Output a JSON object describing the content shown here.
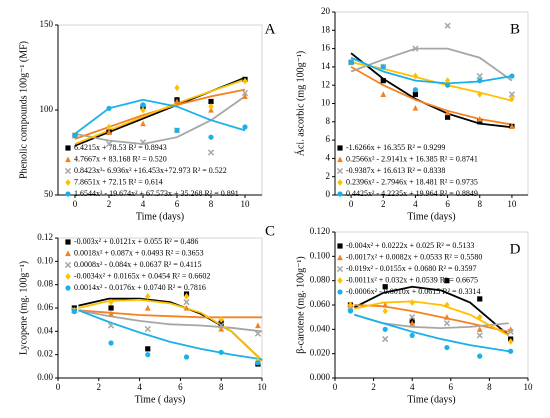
{
  "chart_data": [
    {
      "type": "scatter",
      "label": "A",
      "xlabel": "Time (days)",
      "ylabel": "Phenolic compounds 100g⁻¹ (MF)",
      "xlim": [
        -1,
        11
      ],
      "xticks": [
        0,
        2,
        4,
        6,
        8,
        10
      ],
      "ylim": [
        50,
        150
      ],
      "yticks": [
        50,
        100,
        150
      ],
      "x": [
        0,
        2,
        4,
        6,
        8,
        10
      ],
      "fit_x": [
        0,
        2,
        4,
        6,
        8,
        10
      ],
      "series": [
        {
          "name": "6.4215x + 78.53 R² = 0.8943",
          "color": "#000000",
          "marker": "square",
          "values": [
            85,
            87,
            102,
            106,
            105,
            118
          ],
          "fit": [
            79,
            87,
            95,
            103,
            111,
            119
          ]
        },
        {
          "name": "4.7667x + 83.168 R² = 0.520",
          "color": "#f58220",
          "marker": "triangle",
          "values": [
            85,
            87,
            92,
            105,
            100,
            108
          ],
          "fit": [
            83,
            90,
            97,
            103,
            108,
            112
          ]
        },
        {
          "name": "0.8423x³- 6.936x² +16.453x+72.973 R² = 0.522",
          "color": "#a6a6a6",
          "marker": "x",
          "values": [
            85,
            80,
            81,
            88,
            75,
            110
          ],
          "fit": [
            86,
            82,
            80,
            84,
            94,
            108
          ]
        },
        {
          "name": "7.8651x + 72.15 R² = 0.614",
          "color": "#ffc000",
          "marker": "diamond",
          "values": [
            85,
            90,
            100,
            113,
            102,
            117
          ],
          "fit": [
            80,
            88,
            96,
            104,
            111,
            118
          ]
        },
        {
          "name": "1.6544x³ - 19.674x² + 67.573x + 35.268 R² = 0.891",
          "color": "#1ab0e8",
          "marker": "circle",
          "values": [
            85,
            101,
            103,
            88,
            84,
            90
          ],
          "fit": [
            86,
            101,
            106,
            102,
            94,
            88
          ]
        }
      ]
    },
    {
      "type": "scatter",
      "label": "B",
      "xlabel": "Time (days)",
      "ylabel": "Áci. ascorbic (mg 100g⁻¹)",
      "xlim": [
        -1,
        11
      ],
      "xticks": [
        0,
        2,
        4,
        6,
        8,
        10
      ],
      "ylim": [
        0,
        20
      ],
      "yticks": [
        0,
        2,
        4,
        6,
        8,
        10,
        12,
        14,
        16,
        18,
        20
      ],
      "x": [
        0,
        2,
        4,
        6,
        8,
        10
      ],
      "fit_x": [
        0,
        2,
        4,
        6,
        8,
        10
      ],
      "series": [
        {
          "name": "-1.6266x + 16.355 R² = 0.9299",
          "color": "#000000",
          "marker": "square",
          "values": [
            14.5,
            12.5,
            11,
            8.5,
            8,
            7.5
          ],
          "fit": [
            15.5,
            12.7,
            10.5,
            8.9,
            7.8,
            7.4
          ]
        },
        {
          "name": "0.2566x² - 2.9141x + 16.385 R² = 0.8741",
          "color": "#f58220",
          "marker": "triangle",
          "values": [
            14.5,
            11,
            9.5,
            9,
            8.3,
            7.5
          ],
          "fit": [
            14,
            12,
            10.4,
            9.2,
            8.3,
            7.7
          ]
        },
        {
          "name": "-0.9387x + 16.613 R² = 0.8338",
          "color": "#a6a6a6",
          "marker": "x",
          "values": [
            14.5,
            14,
            16,
            18.5,
            13,
            11
          ],
          "fit": [
            13.5,
            14.8,
            16,
            16,
            15,
            12.5
          ]
        },
        {
          "name": "0.2396x² - 2.7946x + 18.481 R² = 0.9735",
          "color": "#ffc000",
          "marker": "diamond",
          "values": [
            14.5,
            14,
            13,
            12.5,
            11,
            10.5
          ],
          "fit": [
            14.5,
            13.8,
            12.9,
            12,
            11.2,
            10.3
          ]
        },
        {
          "name": "0.4425x² - 4.2235x + 19.964 R² = 0.8849",
          "color": "#1ab0e8",
          "marker": "circle",
          "values": [
            14.5,
            14,
            11.5,
            12,
            12.5,
            13
          ],
          "fit": [
            15,
            13.5,
            12.5,
            12.2,
            12.4,
            13
          ]
        }
      ]
    },
    {
      "type": "scatter",
      "label": "C",
      "xlabel": "Time ( days)",
      "ylabel": "Lycopene (mg. 100g⁻¹)",
      "xlim": [
        0,
        10
      ],
      "xticks": [
        0,
        2,
        4,
        6,
        8,
        10
      ],
      "ylim": [
        0,
        0.12
      ],
      "yticks": [
        {
          "value": 0,
          "label": "0.00"
        },
        {
          "value": 0.02,
          "label": "0.02"
        },
        {
          "value": 0.04,
          "label": "0.04"
        },
        {
          "value": 0.06,
          "label": "0.06"
        },
        {
          "value": 0.08,
          "label": "0.08"
        },
        {
          "value": 0.1,
          "label": "0.10"
        },
        {
          "value": 0.12,
          "label": "0.12"
        }
      ],
      "x": [
        0.8,
        2.6,
        4.4,
        6.3,
        8,
        9.8
      ],
      "fit_x": [
        1,
        2.5,
        4,
        5.5,
        7,
        8.5,
        10
      ],
      "series": [
        {
          "name": "-0.003x² + 0.0121x + 0.055 R² = 0.486",
          "color": "#000000",
          "marker": "square",
          "values": [
            0.06,
            0.06,
            0.025,
            0.072,
            0.047,
            0.012
          ],
          "fit": [
            0.062,
            0.068,
            0.068,
            0.065,
            0.055,
            0.04,
            0.015
          ]
        },
        {
          "name": "0.0018x² + 0.087x + 0.0493 R² = 0.3653",
          "color": "#f58220",
          "marker": "triangle",
          "values": [
            0.058,
            0.055,
            0.06,
            0.06,
            0.042,
            0.045
          ],
          "fit": [
            0.058,
            0.056,
            0.054,
            0.053,
            0.052,
            0.052,
            0.052
          ]
        },
        {
          "name": "0.0008x² - 0.084x + 0.0637 R² = 0.4115",
          "color": "#a6a6a6",
          "marker": "x",
          "values": [
            0.058,
            0.045,
            0.042,
            0.065,
            0.045,
            0.038
          ],
          "fit": [
            0.058,
            0.053,
            0.049,
            0.046,
            0.045,
            0.043,
            0.04
          ]
        },
        {
          "name": "-0.0034x² + 0.0165x + 0.0454 R² = 0.6602",
          "color": "#ffc000",
          "marker": "diamond",
          "values": [
            0.058,
            0.065,
            0.07,
            0.07,
            0.05,
            0.015
          ],
          "fit": [
            0.06,
            0.066,
            0.067,
            0.064,
            0.056,
            0.04,
            0.015
          ]
        },
        {
          "name": "0.0014x² - 0.0176x + 0.0740 R² = 0.7816",
          "color": "#1ab0e8",
          "marker": "circle",
          "values": [
            0.057,
            0.03,
            0.02,
            0.018,
            0.022,
            0.013
          ],
          "fit": [
            0.058,
            0.048,
            0.039,
            0.031,
            0.025,
            0.02,
            0.016
          ]
        }
      ]
    },
    {
      "type": "scatter",
      "label": "D",
      "xlabel": "Time (days)",
      "ylabel": "β-carotene (mg. 100g⁻¹)",
      "xlim": [
        0,
        10
      ],
      "xticks": [
        0,
        2,
        4,
        6,
        8,
        10
      ],
      "ylim": [
        0,
        0.12
      ],
      "yticks": [
        {
          "value": 0,
          "label": "0.000"
        },
        {
          "value": 0.02,
          "label": "0.020"
        },
        {
          "value": 0.04,
          "label": "0.040"
        },
        {
          "value": 0.06,
          "label": "0.060"
        },
        {
          "value": 0.08,
          "label": "0.080"
        },
        {
          "value": 0.1,
          "label": "0.100"
        },
        {
          "value": 0.12,
          "label": "0.120"
        }
      ],
      "x": [
        0.8,
        2.6,
        4,
        5.8,
        7.5,
        9.1
      ],
      "fit_x": [
        1,
        2.5,
        4,
        5.5,
        7,
        9
      ],
      "series": [
        {
          "name": "-0.004x² + 0.0222x + 0.025 R² = 0.5133",
          "color": "#000000",
          "marker": "square",
          "values": [
            0.06,
            0.075,
            0.047,
            0.08,
            0.065,
            0.032
          ],
          "fit": [
            0.058,
            0.07,
            0.075,
            0.072,
            0.062,
            0.035
          ]
        },
        {
          "name": "-0.0017x² + 0.0082x + 0.0533 R² = 0.5580",
          "color": "#f58220",
          "marker": "triangle",
          "values": [
            0.06,
            0.06,
            0.045,
            0.05,
            0.04,
            0.04
          ],
          "fit": [
            0.06,
            0.059,
            0.055,
            0.05,
            0.045,
            0.038
          ]
        },
        {
          "name": "-0.019x² - 0.0155x + 0.0680 R² = 0.3597",
          "color": "#a6a6a6",
          "marker": "x",
          "values": [
            0.058,
            0.032,
            0.05,
            0.045,
            0.035,
            0.038
          ],
          "fit": [
            0.052,
            0.045,
            0.042,
            0.041,
            0.042,
            0.045
          ]
        },
        {
          "name": "-0.0011x² + 0.032x + 0.0539 R² = 0.6675",
          "color": "#ffc000",
          "marker": "diamond",
          "values": [
            0.06,
            0.055,
            0.062,
            0.06,
            0.05,
            0.03
          ],
          "fit": [
            0.057,
            0.062,
            0.063,
            0.06,
            0.052,
            0.035
          ]
        },
        {
          "name": "-0.0006x² - 0.0010x + 0.0615 R² = 0.3314",
          "color": "#1ab0e8",
          "marker": "circle",
          "values": [
            0.055,
            0.04,
            0.035,
            0.025,
            0.018,
            0.022
          ],
          "fit": [
            0.052,
            0.045,
            0.038,
            0.032,
            0.027,
            0.022
          ]
        }
      ]
    }
  ]
}
